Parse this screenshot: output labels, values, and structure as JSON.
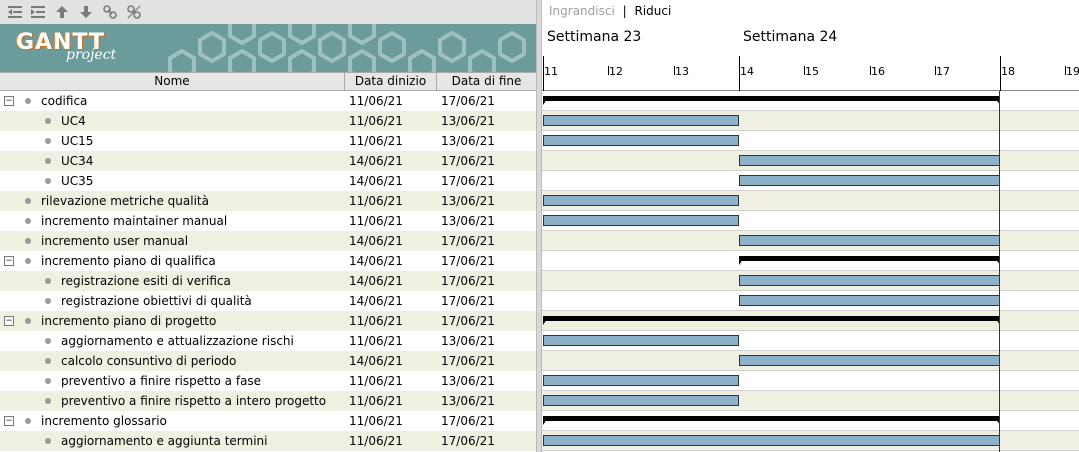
{
  "toolbar": {
    "icons": [
      "unindent-icon",
      "indent-icon",
      "move-up-icon",
      "move-down-icon",
      "link-icon",
      "unlink-icon"
    ]
  },
  "logo": {
    "main": "GANTT",
    "sub": "project"
  },
  "columns": {
    "name": "Nome",
    "start": "Data dinizio",
    "end": "Data di fine"
  },
  "zoom": {
    "zoom_in": "Ingrandisci",
    "separator": "|",
    "zoom_out": "Riduci"
  },
  "timeline": {
    "weeks": [
      "Settimana  23",
      "Settimana  24"
    ],
    "days": [
      "11",
      "12",
      "13",
      "14",
      "15",
      "16",
      "17",
      "18",
      "19"
    ]
  },
  "tasks": [
    {
      "name": "codifica",
      "start": "11/06/21",
      "end": "17/06/21",
      "level": 0,
      "group": true
    },
    {
      "name": "UC4",
      "start": "11/06/21",
      "end": "13/06/21",
      "level": 1,
      "group": false
    },
    {
      "name": "UC15",
      "start": "11/06/21",
      "end": "13/06/21",
      "level": 1,
      "group": false
    },
    {
      "name": "UC34",
      "start": "14/06/21",
      "end": "17/06/21",
      "level": 1,
      "group": false
    },
    {
      "name": "UC35",
      "start": "14/06/21",
      "end": "17/06/21",
      "level": 1,
      "group": false
    },
    {
      "name": "rilevazione metriche qualità",
      "start": "11/06/21",
      "end": "13/06/21",
      "level": 0,
      "group": false
    },
    {
      "name": "incremento maintainer manual",
      "start": "11/06/21",
      "end": "13/06/21",
      "level": 0,
      "group": false
    },
    {
      "name": "incremento user manual",
      "start": "14/06/21",
      "end": "17/06/21",
      "level": 0,
      "group": false
    },
    {
      "name": "incremento piano di qualifica",
      "start": "14/06/21",
      "end": "17/06/21",
      "level": 0,
      "group": true
    },
    {
      "name": "registrazione esiti di verifica",
      "start": "14/06/21",
      "end": "17/06/21",
      "level": 1,
      "group": false
    },
    {
      "name": "registrazione obiettivi di qualità",
      "start": "14/06/21",
      "end": "17/06/21",
      "level": 1,
      "group": false
    },
    {
      "name": "incremento piano di progetto",
      "start": "11/06/21",
      "end": "17/06/21",
      "level": 0,
      "group": true
    },
    {
      "name": "aggiornamento e attualizzazione rischi",
      "start": "11/06/21",
      "end": "13/06/21",
      "level": 1,
      "group": false
    },
    {
      "name": "calcolo consuntivo di periodo",
      "start": "14/06/21",
      "end": "17/06/21",
      "level": 1,
      "group": false
    },
    {
      "name": "preventivo a finire rispetto a fase",
      "start": "11/06/21",
      "end": "13/06/21",
      "level": 1,
      "group": false
    },
    {
      "name": "preventivo a finire rispetto a intero progetto",
      "start": "11/06/21",
      "end": "13/06/21",
      "level": 1,
      "group": false
    },
    {
      "name": "incremento glossario",
      "start": "11/06/21",
      "end": "17/06/21",
      "level": 0,
      "group": true
    },
    {
      "name": "aggiornamento e aggiunta termini",
      "start": "11/06/21",
      "end": "17/06/21",
      "level": 1,
      "group": false
    }
  ]
}
